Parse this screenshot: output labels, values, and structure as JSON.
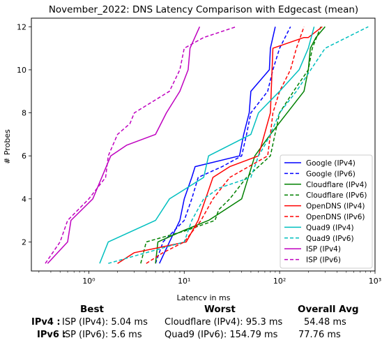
{
  "chart_data": {
    "type": "line",
    "title": "November_2022: DNS Latency Comparison with Edgecast (mean)",
    "xlabel": "Latency in ms",
    "ylabel": "# Probes",
    "xscale": "log",
    "xlim": [
      0.25,
      1000
    ],
    "ylim": [
      0.65,
      12.4
    ],
    "x_ticks": [
      1,
      10,
      100,
      1000
    ],
    "x_tick_labels": [
      "10⁰",
      "10¹",
      "10²",
      "10³"
    ],
    "y_ticks": [
      2,
      4,
      6,
      8,
      10,
      12
    ],
    "legend_position": "lower-right",
    "series": [
      {
        "name": "Google (IPv4)",
        "color": "#0000ff",
        "dash": "solid",
        "x": [
          5.5,
          7.0,
          9.0,
          10.0,
          12.0,
          13.0,
          38.0,
          42.0,
          48.0,
          50.0,
          78.0,
          80.0,
          90.0
        ],
        "y": [
          1,
          2,
          3,
          4,
          5,
          5.5,
          6,
          7,
          8,
          9,
          10,
          11,
          12
        ]
      },
      {
        "name": "Google (IPv6)",
        "color": "#0000ff",
        "dash": "dashed",
        "x": [
          5.0,
          6.0,
          10.0,
          12.0,
          14.0,
          25.0,
          40.0,
          45.0,
          50.0,
          75.0,
          85.0,
          100.0,
          130.0
        ],
        "y": [
          1,
          2,
          3,
          4,
          5,
          5.5,
          6,
          7,
          8,
          9,
          10,
          11,
          12
        ]
      },
      {
        "name": "Cloudflare (IPv4)",
        "color": "#008000",
        "dash": "solid",
        "x": [
          5.0,
          5.3,
          9.5,
          18.0,
          40.0,
          55.0,
          80.0,
          120.0,
          180.0,
          200.0,
          210.0,
          240.0,
          300.0
        ],
        "y": [
          1,
          2,
          2.5,
          3,
          4,
          6,
          7,
          8,
          9,
          10,
          11,
          11.5,
          12
        ]
      },
      {
        "name": "Cloudflare (IPv6)",
        "color": "#008000",
        "dash": "dashed",
        "x": [
          3.5,
          4.0,
          10.0,
          21.0,
          23.0,
          30.0,
          45.0,
          80.0,
          100.0,
          140.0,
          200.0,
          220.0,
          270.0
        ],
        "y": [
          1,
          2,
          2.5,
          3,
          3.5,
          4,
          5,
          6,
          8,
          9,
          10,
          11,
          12
        ]
      },
      {
        "name": "OpenDNS (IPv4)",
        "color": "#ff0000",
        "dash": "solid",
        "x": [
          2.0,
          3.0,
          10.5,
          14.0,
          20.0,
          30.0,
          60.0,
          80.0,
          85.0,
          180.0,
          200.0,
          280.0
        ],
        "y": [
          1,
          1.5,
          2,
          3,
          5,
          5.5,
          6,
          8,
          11,
          11.5,
          11.5,
          12
        ]
      },
      {
        "name": "OpenDNS (IPv6)",
        "color": "#ff0000",
        "dash": "dashed",
        "x": [
          4.0,
          6.0,
          10.0,
          15.0,
          20.0,
          30.0,
          75.0,
          80.0,
          85.0,
          100.0,
          130.0,
          150.0,
          180.0
        ],
        "y": [
          1,
          1.5,
          2,
          3,
          4,
          5,
          6,
          7,
          8,
          9,
          10,
          11,
          12
        ]
      },
      {
        "name": "Quad9 (IPv4)",
        "color": "#00bfbf",
        "dash": "solid",
        "x": [
          1.3,
          1.6,
          5.0,
          7.0,
          16.0,
          18.0,
          30.0,
          50.0,
          60.0,
          100.0,
          160.0,
          200.0,
          230.0
        ],
        "y": [
          1,
          2,
          3,
          4,
          5,
          6,
          6.5,
          7,
          8,
          9,
          10,
          11,
          12
        ]
      },
      {
        "name": "Quad9 (IPv6)",
        "color": "#00bfbf",
        "dash": "dashed",
        "x": [
          1.6,
          10.0,
          12.0,
          16.0,
          23.0,
          50.0,
          60.0,
          70.0,
          80.0,
          100.0,
          150.0,
          300.0,
          850.0
        ],
        "y": [
          1,
          2,
          3,
          4,
          4.5,
          5,
          6,
          6.5,
          7,
          8,
          9,
          11,
          12
        ]
      },
      {
        "name": "ISP (IPv4)",
        "color": "#bf00bf",
        "dash": "solid",
        "x": [
          0.37,
          0.6,
          0.65,
          1.1,
          1.7,
          2.5,
          5.0,
          6.5,
          9.0,
          11.0,
          11.5,
          14.5
        ],
        "y": [
          1,
          2,
          3,
          4,
          6,
          6.5,
          7,
          8,
          9,
          10,
          11,
          12
        ]
      },
      {
        "name": "ISP (IPv6)",
        "color": "#bf00bf",
        "dash": "dashed",
        "x": [
          0.35,
          0.5,
          0.6,
          1.0,
          1.5,
          1.6,
          2.0,
          2.7,
          3.0,
          7.0,
          9.0,
          10.0,
          16.0,
          35.0
        ],
        "y": [
          1,
          2,
          3,
          4,
          5,
          6,
          7,
          7.5,
          8,
          9,
          10,
          11,
          11.5,
          12
        ]
      }
    ]
  },
  "summary": {
    "headers": {
      "best": "Best",
      "worst": "Worst",
      "avg": "Overall Avg"
    },
    "rows": [
      {
        "label": "IPv4 :",
        "best": "ISP (IPv4): 5.04 ms",
        "worst": "Cloudflare (IPv4): 95.3 ms",
        "avg": "54.48 ms"
      },
      {
        "label": "IPv6 :",
        "best": "ISP (IPv6): 5.6 ms",
        "worst": "Quad9 (IPv6): 154.79 ms",
        "avg": "77.76 ms"
      }
    ]
  }
}
